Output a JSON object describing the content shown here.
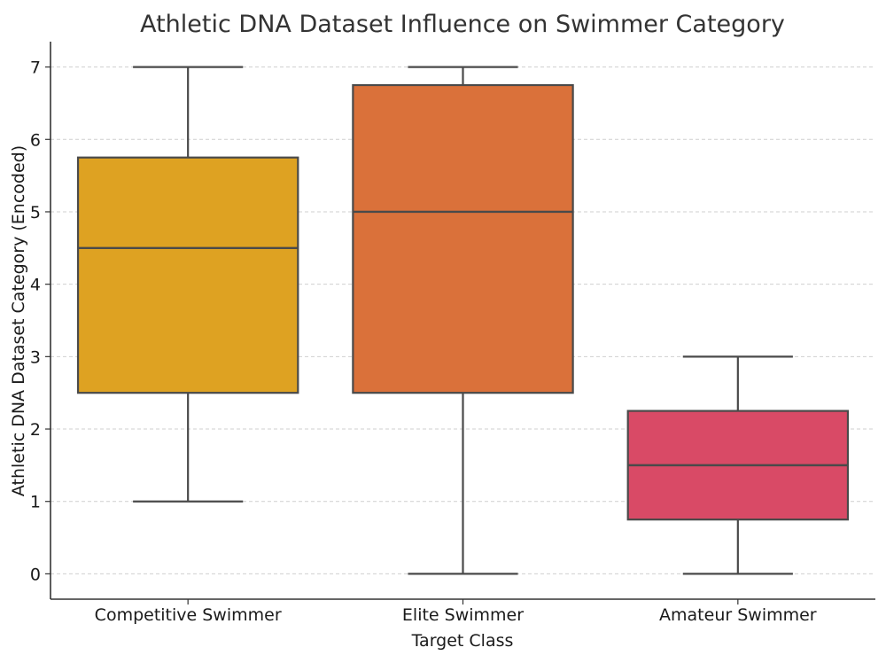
{
  "chart_data": {
    "type": "box",
    "title": "Athletic DNA Dataset Influence on Swimmer Category",
    "xlabel": "Target Class",
    "ylabel": "Athletic DNA Dataset Category (Encoded)",
    "ylim": [
      -0.35,
      7.35
    ],
    "yticks": [
      0,
      1,
      2,
      3,
      4,
      5,
      6,
      7
    ],
    "grid": "y",
    "categories": [
      "Competitive Swimmer",
      "Elite Swimmer",
      "Amateur Swimmer"
    ],
    "boxes": [
      {
        "category": "Competitive Swimmer",
        "min": 1,
        "q1": 2.5,
        "median": 4.5,
        "q3": 5.75,
        "max": 7,
        "color": "#DEA222"
      },
      {
        "category": "Elite Swimmer",
        "min": 0,
        "q1": 2.5,
        "median": 5,
        "q3": 6.75,
        "max": 7,
        "color": "#DA713A"
      },
      {
        "category": "Amateur Swimmer",
        "min": 0,
        "q1": 0.75,
        "median": 1.5,
        "q3": 2.25,
        "max": 3,
        "color": "#D94A66"
      }
    ]
  }
}
